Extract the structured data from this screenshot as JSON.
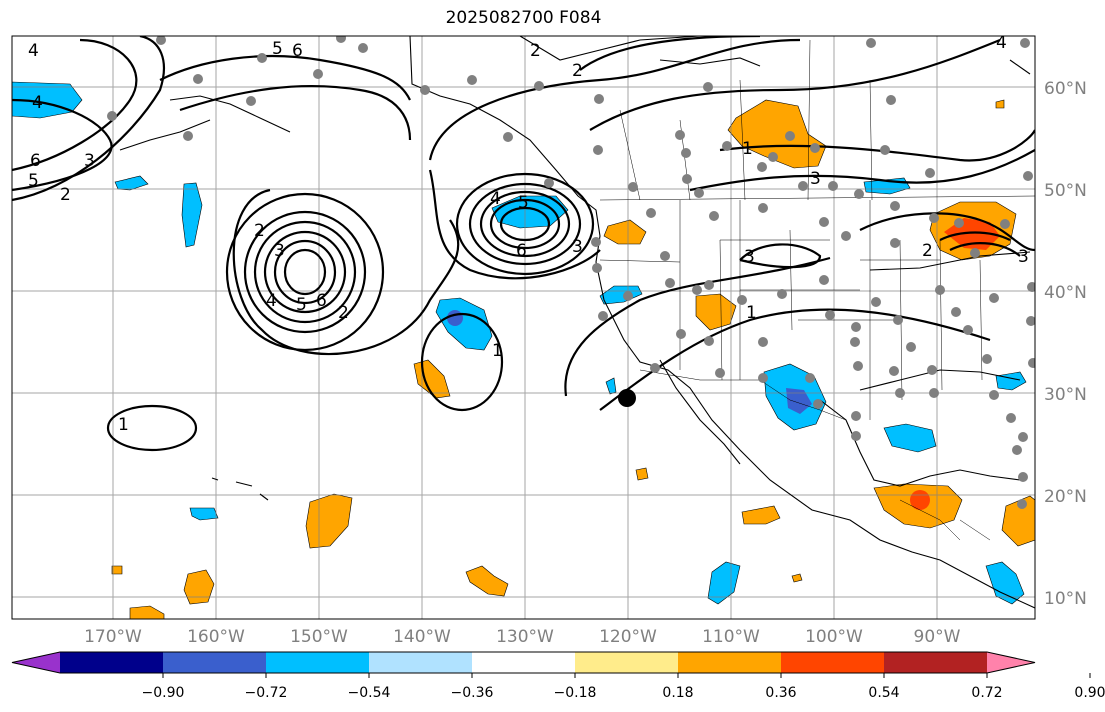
{
  "title": "2025082700 F084",
  "map": {
    "lat_labels": [
      "60°N",
      "50°N",
      "40°N",
      "30°N",
      "20°N",
      "10°N"
    ],
    "lon_labels": [
      "170°W",
      "160°W",
      "150°W",
      "140°W",
      "130°W",
      "120°W",
      "110°W",
      "100°W",
      "90°W"
    ],
    "contour_labels": [
      "4",
      "5",
      "6",
      "4",
      "6",
      "5",
      "3",
      "2",
      "2",
      "2",
      "2",
      "3",
      "4",
      "5",
      "6",
      "6",
      "5",
      "4",
      "3",
      "2",
      "3",
      "1",
      "3",
      "1",
      "1",
      "1",
      "2",
      "3",
      "4"
    ]
  },
  "colorbar": {
    "tick_labels": [
      "−0.90",
      "−0.72",
      "−0.54",
      "−0.36",
      "−0.18",
      "0.18",
      "0.36",
      "0.54",
      "0.72",
      "0.90"
    ],
    "colors": [
      "#9932cc",
      "#00008b",
      "#3a5fcd",
      "#00bfff",
      "#b0e2ff",
      "#ffffff",
      "#ffec8b",
      "#ffa500",
      "#ff4500",
      "#b22222",
      "#ff82ab"
    ]
  }
}
